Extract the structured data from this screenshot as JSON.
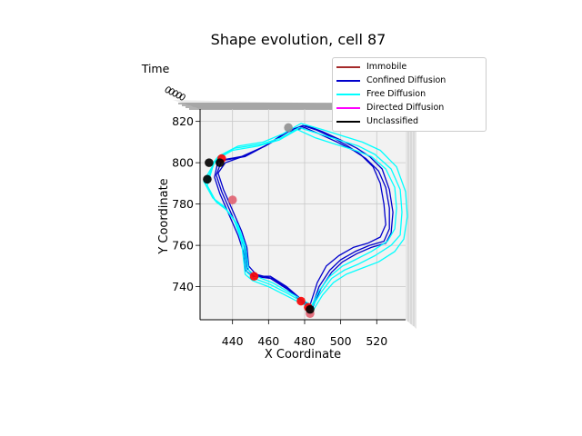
{
  "chart_data": {
    "type": "line",
    "title": "Shape evolution, cell 87",
    "xlabel": "X Coordinate",
    "ylabel": "Y Coordinate",
    "zlabel": "Time",
    "xlim": [
      422,
      536
    ],
    "ylim": [
      724,
      826
    ],
    "xticks": [
      440,
      460,
      480,
      500,
      520
    ],
    "yticks": [
      740,
      760,
      780,
      800,
      820
    ],
    "legend": [
      {
        "label": "Immobile",
        "color": "#a52a2a"
      },
      {
        "label": "Confined Diffusion",
        "color": "#0000cc"
      },
      {
        "label": "Free Diffusion",
        "color": "#00ffff"
      },
      {
        "label": "Directed Diffusion",
        "color": "#ff00ff"
      },
      {
        "label": "Unclassified",
        "color": "#000000"
      }
    ],
    "series": [
      {
        "name": "Confined Diffusion",
        "color": "#0000cc",
        "points": [
          [
            432,
            801
          ],
          [
            445,
            803
          ],
          [
            458,
            808
          ],
          [
            470,
            815
          ],
          [
            479,
            818
          ],
          [
            486,
            816
          ],
          [
            496,
            812
          ],
          [
            504,
            808
          ],
          [
            511,
            804
          ],
          [
            518,
            798
          ],
          [
            522,
            790
          ],
          [
            524,
            780
          ],
          [
            525,
            770
          ],
          [
            522,
            764
          ],
          [
            515,
            761
          ],
          [
            507,
            759
          ],
          [
            499,
            755
          ],
          [
            492,
            750
          ],
          [
            487,
            742
          ],
          [
            483,
            731
          ],
          [
            478,
            734
          ],
          [
            470,
            740
          ],
          [
            461,
            745
          ],
          [
            451,
            745
          ],
          [
            447,
            748
          ],
          [
            446,
            757
          ],
          [
            443,
            765
          ],
          [
            438,
            775
          ],
          [
            433,
            785
          ],
          [
            430,
            793
          ],
          [
            432,
            801
          ]
        ]
      },
      {
        "name": "Confined Diffusion",
        "color": "#0000cc",
        "points": [
          [
            434,
            801
          ],
          [
            447,
            803
          ],
          [
            460,
            809
          ],
          [
            471,
            815
          ],
          [
            480,
            817
          ],
          [
            488,
            814
          ],
          [
            498,
            810
          ],
          [
            507,
            806
          ],
          [
            514,
            802
          ],
          [
            521,
            796
          ],
          [
            525,
            788
          ],
          [
            527,
            778
          ],
          [
            527,
            768
          ],
          [
            524,
            762
          ],
          [
            516,
            760
          ],
          [
            508,
            757
          ],
          [
            500,
            753
          ],
          [
            494,
            748
          ],
          [
            488,
            740
          ],
          [
            484,
            730
          ],
          [
            479,
            733
          ],
          [
            470,
            739
          ],
          [
            461,
            744
          ],
          [
            452,
            745
          ],
          [
            448,
            749
          ],
          [
            447,
            758
          ],
          [
            444,
            766
          ],
          [
            439,
            776
          ],
          [
            434,
            786
          ],
          [
            431,
            794
          ],
          [
            434,
            801
          ]
        ]
      },
      {
        "name": "Confined Diffusion",
        "color": "#0000cc",
        "points": [
          [
            436,
            800
          ],
          [
            449,
            804
          ],
          [
            462,
            810
          ],
          [
            472,
            816
          ],
          [
            481,
            818
          ],
          [
            490,
            815
          ],
          [
            500,
            811
          ],
          [
            509,
            807
          ],
          [
            516,
            803
          ],
          [
            523,
            797
          ],
          [
            527,
            787
          ],
          [
            529,
            776
          ],
          [
            528,
            766
          ],
          [
            525,
            761
          ],
          [
            517,
            759
          ],
          [
            509,
            756
          ],
          [
            501,
            752
          ],
          [
            495,
            747
          ],
          [
            489,
            739
          ],
          [
            484,
            729
          ],
          [
            479,
            732
          ],
          [
            471,
            739
          ],
          [
            462,
            744
          ],
          [
            453,
            746
          ],
          [
            449,
            750
          ],
          [
            448,
            759
          ],
          [
            445,
            767
          ],
          [
            440,
            777
          ],
          [
            435,
            787
          ],
          [
            432,
            795
          ],
          [
            436,
            800
          ]
        ]
      },
      {
        "name": "Free Diffusion",
        "color": "#00ffff",
        "points": [
          [
            430,
            801
          ],
          [
            440,
            806
          ],
          [
            454,
            808
          ],
          [
            466,
            811
          ],
          [
            476,
            816
          ],
          [
            486,
            812
          ],
          [
            497,
            809
          ],
          [
            508,
            806
          ],
          [
            517,
            803
          ],
          [
            525,
            797
          ],
          [
            530,
            788
          ],
          [
            531,
            778
          ],
          [
            530,
            768
          ],
          [
            526,
            762
          ],
          [
            517,
            757
          ],
          [
            508,
            753
          ],
          [
            501,
            750
          ],
          [
            494,
            745
          ],
          [
            488,
            738
          ],
          [
            484,
            731
          ],
          [
            478,
            734
          ],
          [
            470,
            738
          ],
          [
            462,
            742
          ],
          [
            453,
            745
          ],
          [
            449,
            748
          ],
          [
            447,
            760
          ],
          [
            443,
            770
          ],
          [
            437,
            777
          ],
          [
            431,
            781
          ],
          [
            426,
            789
          ],
          [
            430,
            801
          ]
        ]
      },
      {
        "name": "Free Diffusion",
        "color": "#00ffff",
        "points": [
          [
            431,
            802
          ],
          [
            441,
            807
          ],
          [
            456,
            809
          ],
          [
            467,
            812
          ],
          [
            477,
            817
          ],
          [
            488,
            814
          ],
          [
            499,
            811
          ],
          [
            510,
            808
          ],
          [
            519,
            804
          ],
          [
            528,
            797
          ],
          [
            533,
            787
          ],
          [
            534,
            776
          ],
          [
            533,
            765
          ],
          [
            528,
            760
          ],
          [
            519,
            755
          ],
          [
            510,
            751
          ],
          [
            502,
            748
          ],
          [
            495,
            744
          ],
          [
            489,
            737
          ],
          [
            484,
            730
          ],
          [
            478,
            733
          ],
          [
            470,
            737
          ],
          [
            461,
            741
          ],
          [
            452,
            744
          ],
          [
            448,
            747
          ],
          [
            446,
            761
          ],
          [
            442,
            771
          ],
          [
            436,
            778
          ],
          [
            430,
            782
          ],
          [
            425,
            790
          ],
          [
            431,
            802
          ]
        ]
      },
      {
        "name": "Free Diffusion",
        "color": "#00ffff",
        "points": [
          [
            432,
            803
          ],
          [
            443,
            808
          ],
          [
            457,
            810
          ],
          [
            468,
            814
          ],
          [
            478,
            819
          ],
          [
            490,
            816
          ],
          [
            501,
            813
          ],
          [
            512,
            810
          ],
          [
            522,
            806
          ],
          [
            531,
            798
          ],
          [
            536,
            786
          ],
          [
            537,
            774
          ],
          [
            535,
            763
          ],
          [
            530,
            757
          ],
          [
            521,
            752
          ],
          [
            512,
            749
          ],
          [
            503,
            746
          ],
          [
            496,
            742
          ],
          [
            490,
            736
          ],
          [
            485,
            729
          ],
          [
            478,
            732
          ],
          [
            469,
            736
          ],
          [
            460,
            740
          ],
          [
            451,
            743
          ],
          [
            447,
            746
          ],
          [
            445,
            762
          ],
          [
            441,
            772
          ],
          [
            435,
            779
          ],
          [
            429,
            783
          ],
          [
            424,
            791
          ],
          [
            432,
            803
          ]
        ]
      }
    ],
    "markers": [
      {
        "label": "Immobile",
        "color": "#ff0000",
        "points": [
          [
            434,
            802
          ],
          [
            452,
            745
          ],
          [
            478,
            733
          ],
          [
            482,
            730
          ]
        ]
      },
      {
        "label": "Immobile",
        "color": "#e06070",
        "points": [
          [
            440,
            782
          ],
          [
            483,
            727
          ]
        ]
      },
      {
        "label": "Unclassified",
        "color": "#000000",
        "points": [
          [
            427,
            800
          ],
          [
            426,
            792
          ],
          [
            483,
            729
          ],
          [
            433,
            800
          ]
        ]
      },
      {
        "label": "Unclassified",
        "color": "#909090",
        "points": [
          [
            471,
            817
          ]
        ]
      }
    ]
  }
}
